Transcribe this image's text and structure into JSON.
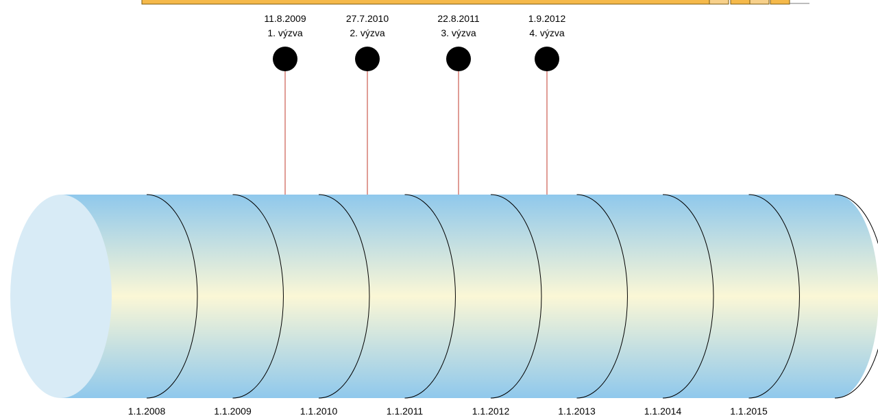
{
  "diagram": {
    "top_bar": {
      "fill": "#f5b94a",
      "stroke": "#7a5a10"
    },
    "cylinder": {
      "edge_color": "#8fc8ec",
      "middle_color": "#fbf7d6",
      "cap_color": "#d8ebf6",
      "band_line_color": "#000000"
    },
    "milestones": [
      {
        "date": "11.8.2009",
        "label": "1. výzva"
      },
      {
        "date": "27.7.2010",
        "label": "2. výzva"
      },
      {
        "date": "22.8.2011",
        "label": "3. výzva"
      },
      {
        "date": "1.9.2012",
        "label": "4. výzva"
      }
    ],
    "milestone_color": "#000000",
    "connector_color": "#c0392b",
    "year_labels": [
      "1.1.2008",
      "1.1.2009",
      "1.1.2010",
      "1.1.2011",
      "1.1.2012",
      "1.1.2013",
      "1.1.2014",
      "1.1.2015"
    ]
  }
}
